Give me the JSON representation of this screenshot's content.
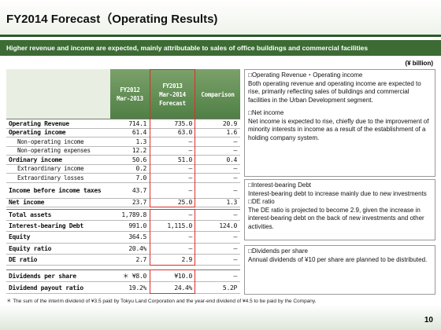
{
  "header": {
    "title": "FY2014 Forecast（Operating Results)",
    "banner": "Higher revenue and income are expected, mainly attributable to sales of office buildings and commercial facilities",
    "unit": "(¥ billion)"
  },
  "table": {
    "header": [
      [
        "FY2012",
        "Mar-2013"
      ],
      [
        "FY2013",
        "Mar-2014",
        "Forecast"
      ],
      [
        "Comparison"
      ]
    ],
    "groups": [
      {
        "rows": [
          [
            "Operating Revenue",
            "714.1",
            "735.0",
            "20.9"
          ],
          [
            "Operating income",
            "61.4",
            "63.0",
            "1.6"
          ],
          [
            "Non-operating income",
            "1.3",
            "—",
            "—"
          ],
          [
            "Non-operating expenses",
            "12.2",
            "—",
            "—"
          ],
          [
            "Ordinary income",
            "50.6",
            "51.0",
            "0.4"
          ],
          [
            "Extraordinary income",
            "0.2",
            "—",
            "—"
          ],
          [
            "Extraordinary losses",
            "7.0",
            "—",
            "—"
          ],
          [
            "Income before income taxes",
            "43.7",
            "—",
            "—"
          ],
          [
            "Net income",
            "23.7",
            "25.0",
            "1.3"
          ]
        ]
      },
      {
        "rows": [
          [
            "Total assets",
            "1,789.8",
            "—",
            "—"
          ],
          [
            "Interest-bearing Debt",
            "991.0",
            "1,115.0",
            "124.0"
          ],
          [
            "Equity",
            "364.5",
            "—",
            "—"
          ],
          [
            "Equity ratio",
            "20.4%",
            "—",
            "—"
          ],
          [
            "DE ratio",
            "2.7",
            "2.9",
            "—"
          ]
        ]
      },
      {
        "rows": [
          [
            "Dividends per share",
            "＊ ¥8.0",
            "¥10.0",
            "—"
          ],
          [
            "Dividend payout ratio",
            "19.2%",
            "24.4%",
            "5.2P"
          ]
        ]
      }
    ],
    "footnote": "＊ The sum of the interim dividend of ¥3.5 paid by Tokyu Land Corporation and the year-end dividend of ¥4.5 to be paid by the Company."
  },
  "panels": [
    {
      "sections": [
        {
          "heading": "□Operating Revenue・Operating income",
          "text": "Both operating revenue and operating income are expected to rise, primarily reflecting sales of buildings and commercial facilities in the Urban Development segment."
        },
        {
          "heading": "□Net income",
          "text": "Net income is expected to rise, chiefly due to the improvement of minority interests in income as a result of the establishment of a holding company system."
        }
      ]
    },
    {
      "sections": [
        {
          "heading": "□Interest-bearing Debt",
          "text": "Interest-bearing debt to increase mainly due to new investments"
        },
        {
          "heading": "□DE ratio",
          "text": "The DE ratio is projected to become 2.9, given the increase in interest-bearing debt on the back of new investments and other activities."
        }
      ]
    },
    {
      "sections": [
        {
          "heading": "□Dividends per share",
          "text": "Annual dividends of ¥10 per share are planned to be distributed."
        }
      ]
    }
  ],
  "page_number": "10"
}
